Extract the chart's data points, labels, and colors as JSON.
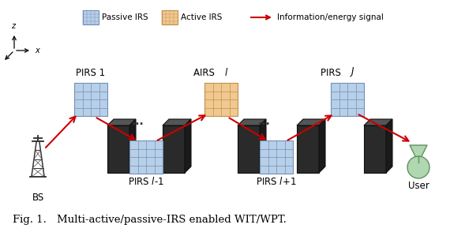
{
  "bg_color": "#ffffff",
  "passive_irs_color": "#b8cfe8",
  "passive_irs_line_color": "#7090b8",
  "active_irs_color": "#f0c890",
  "active_irs_line_color": "#c09050",
  "signal_arrow_color": "#cc0000",
  "title_text": "Fig. 1. Multi-active/passive-IRS enabled WIT/WPT.",
  "legend_passive": "Passive IRS",
  "legend_active": "Active IRS",
  "legend_signal": "Information/energy signal",
  "label_pirs1": "PIRS 1",
  "label_airsl": "AIRS ",
  "label_airsl_italic": "l",
  "label_pirsJ": "PIRS ",
  "label_pirsJ_italic": "J",
  "label_pirsL1": "PIRS ",
  "label_pirsL1_italic": "l",
  "label_pirsL1_suffix": "-1",
  "label_pirsL2": "PIRS ",
  "label_pirsL2_italic": "l",
  "label_pirsL2_suffix": "+1",
  "label_bs": "BS",
  "label_user": "User",
  "figsize": [
    5.7,
    2.94
  ],
  "dpi": 100,
  "user_color": "#b0d8b0",
  "user_edge_color": "#609060"
}
